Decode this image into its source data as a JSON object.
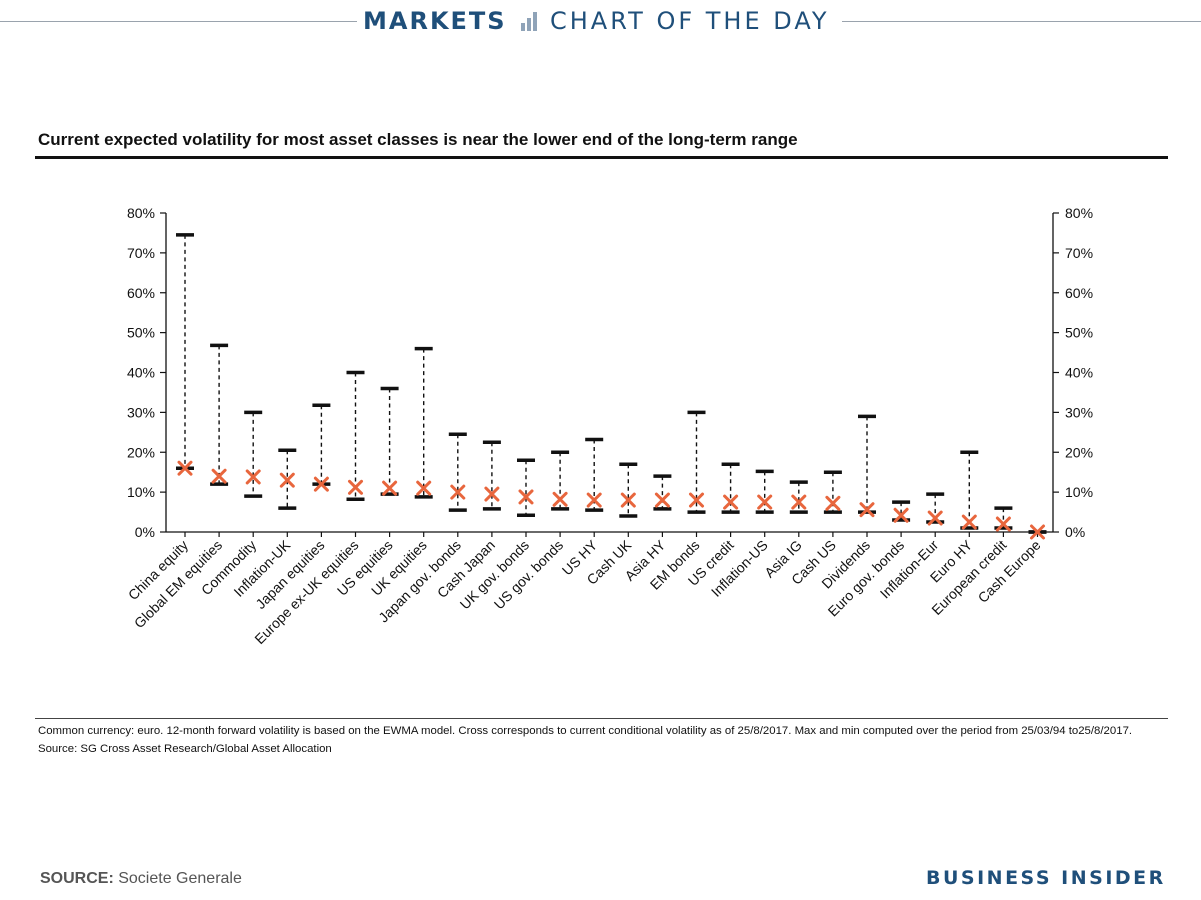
{
  "header": {
    "section": "MARKETS",
    "series": "CHART OF THE DAY",
    "icon": "bar-chart-icon"
  },
  "chart_data": {
    "type": "range",
    "title": "Current expected volatility for most asset classes is near the lower end of the long-term range",
    "ylim": [
      0,
      80
    ],
    "yticks": [
      "0%",
      "10%",
      "20%",
      "30%",
      "40%",
      "50%",
      "60%",
      "70%",
      "80%"
    ],
    "ytick_values": [
      0,
      10,
      20,
      30,
      40,
      50,
      60,
      70,
      80
    ],
    "grid": false,
    "legend": "none",
    "categories": [
      "China equity",
      "Global EM equities",
      "Commodity",
      "Inflation-UK",
      "Japan equities",
      "Europe ex-UK equities",
      "US equities",
      "UK equities",
      "Japan gov. bonds",
      "Cash Japan",
      "UK gov. bonds",
      "US gov. bonds",
      "US HY",
      "Cash UK",
      "Asia HY",
      "EM bonds",
      "US credit",
      "Inflation-US",
      "Asia IG",
      "Cash US",
      "Dividends",
      "Euro gov. bonds",
      "Inflation-Eur",
      "Euro HY",
      "European credit",
      "Cash Europe"
    ],
    "series": [
      {
        "name": "Max",
        "values": [
          74.5,
          46.8,
          30,
          20.5,
          31.8,
          40,
          36,
          46,
          24.5,
          22.5,
          18,
          20,
          23.2,
          17,
          14,
          30,
          17,
          15.2,
          12.5,
          15,
          29,
          7.5,
          9.5,
          20,
          6,
          0
        ]
      },
      {
        "name": "Min",
        "values": [
          16,
          12,
          9,
          6,
          12,
          8.2,
          9.5,
          8.8,
          5.5,
          5.8,
          4.2,
          5.8,
          5.5,
          4,
          5.8,
          5,
          5,
          5,
          5,
          5,
          5,
          3,
          2.5,
          1,
          1,
          0
        ]
      },
      {
        "name": "Current",
        "values": [
          16,
          14,
          13.8,
          13,
          12,
          11.2,
          11,
          11,
          10,
          9.5,
          8.8,
          8.2,
          8,
          8,
          8,
          8,
          7.5,
          7.5,
          7.5,
          7.2,
          5.6,
          4.2,
          3.5,
          2.5,
          2,
          0
        ]
      }
    ]
  },
  "footnote": "Common currency: euro. 12-month forward volatility is based on the EWMA model. Cross corresponds to current conditional volatility as of 25/8/2017. Max and min computed over the period from 25/03/94 to25/8/2017. Source: SG Cross Asset Research/Global Asset Allocation",
  "source": {
    "label": "SOURCE:",
    "text": "Societe Generale"
  },
  "brand": "BUSINESS INSIDER",
  "colors": {
    "header_blue": "#1f4f7a",
    "cross": "#e8663d",
    "range_marks": "#111111"
  }
}
